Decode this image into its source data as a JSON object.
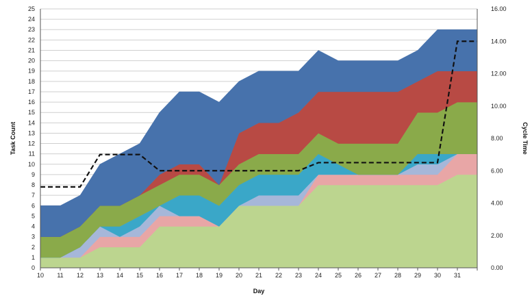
{
  "chart_data": {
    "type": "area",
    "xlabel": "Day",
    "ylabel": "Task Count",
    "y2label": "Cycle Time",
    "categories": [
      "10",
      "11",
      "12",
      "13",
      "14",
      "15",
      "16",
      "17",
      "18",
      "19",
      "20",
      "21",
      "22",
      "23",
      "24",
      "25",
      "26",
      "27",
      "28",
      "29",
      "30",
      "31",
      ""
    ],
    "ylim": [
      0,
      25
    ],
    "y2lim": [
      0,
      16
    ],
    "y_ticks": [
      "0",
      "1",
      "2",
      "3",
      "4",
      "5",
      "6",
      "7",
      "8",
      "9",
      "10",
      "11",
      "12",
      "13",
      "14",
      "15",
      "16",
      "17",
      "18",
      "19",
      "20",
      "21",
      "22",
      "23",
      "24",
      "25"
    ],
    "y2_ticks": [
      "0.00",
      "2.00",
      "4.00",
      "6.00",
      "8.00",
      "10.00",
      "12.00",
      "14.00",
      "16.00"
    ],
    "grid": true,
    "stacked": true,
    "series": [
      {
        "color": "#bcd58f",
        "values": [
          1,
          1,
          1,
          2,
          2,
          2,
          4,
          4,
          4,
          4,
          6,
          6,
          6,
          6,
          8,
          8,
          8,
          8,
          8,
          8,
          8,
          9,
          9
        ]
      },
      {
        "color": "#e8a6a6",
        "values": [
          0,
          0,
          0,
          1,
          1,
          1,
          1,
          1,
          1,
          0,
          0,
          0,
          0,
          0,
          1,
          1,
          1,
          1,
          1,
          1,
          1,
          2,
          2
        ]
      },
      {
        "color": "#a6b7d9",
        "values": [
          0,
          0,
          1,
          1,
          0,
          1,
          1,
          0,
          0,
          0,
          0,
          1,
          1,
          1,
          0,
          0,
          0,
          0,
          0,
          1,
          1,
          0,
          0
        ]
      },
      {
        "color": "#3aa7c8",
        "values": [
          0,
          0,
          0,
          0,
          1,
          1,
          0,
          2,
          2,
          2,
          2,
          2,
          2,
          2,
          2,
          1,
          0,
          0,
          0,
          1,
          1,
          0,
          0
        ]
      },
      {
        "color": "#8aaa4a",
        "values": [
          2,
          2,
          2,
          2,
          2,
          2,
          2,
          2,
          2,
          2,
          2,
          2,
          2,
          2,
          2,
          2,
          3,
          3,
          3,
          4,
          4,
          5,
          5
        ]
      },
      {
        "color": "#b84a44",
        "values": [
          0,
          0,
          0,
          0,
          0,
          0,
          1,
          1,
          1,
          0,
          3,
          3,
          3,
          4,
          4,
          5,
          5,
          5,
          5,
          3,
          4,
          3,
          3
        ]
      },
      {
        "color": "#4772ac",
        "values": [
          3,
          3,
          3,
          4,
          5,
          5,
          6,
          7,
          7,
          8,
          5,
          5,
          5,
          4,
          4,
          3,
          3,
          3,
          3,
          3,
          4,
          4,
          4
        ]
      }
    ],
    "cycle_time": {
      "style": "dashed",
      "color": "#111111",
      "points": [
        {
          "x": 0,
          "y": 5.0
        },
        {
          "x": 2,
          "y": 5.0
        },
        {
          "x": 3,
          "y": 7.0
        },
        {
          "x": 5,
          "y": 7.0
        },
        {
          "x": 6,
          "y": 6.0
        },
        {
          "x": 13,
          "y": 6.0
        },
        {
          "x": 14,
          "y": 6.5
        },
        {
          "x": 20,
          "y": 6.5
        },
        {
          "x": 21,
          "y": 14.0
        },
        {
          "x": 22,
          "y": 14.0
        }
      ]
    }
  }
}
